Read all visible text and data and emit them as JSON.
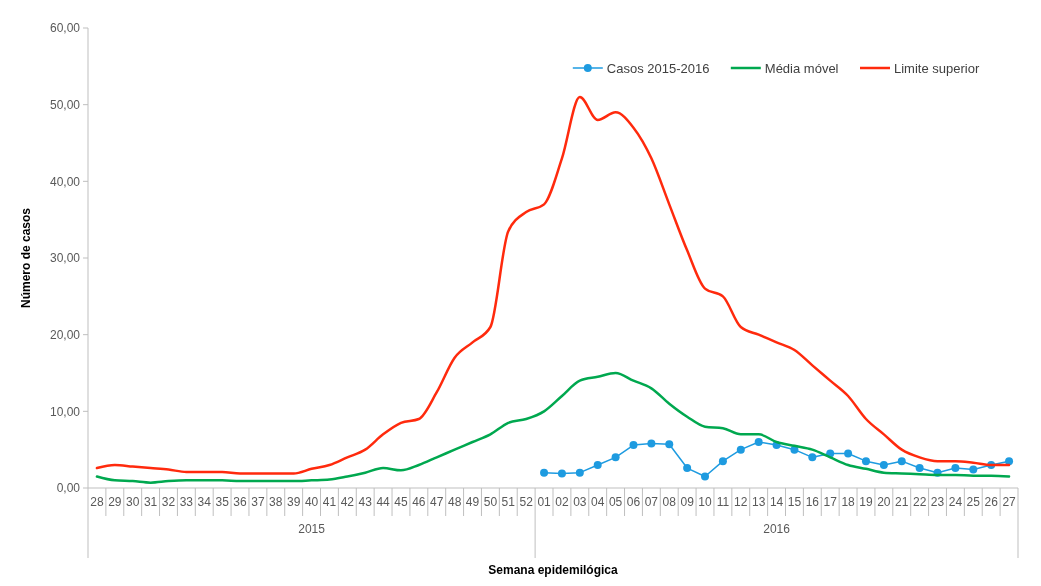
{
  "chart_data": {
    "type": "line",
    "ylabel": "Número de casos",
    "xlabel": "Semana epidemilógica",
    "categories": [
      "28",
      "29",
      "30",
      "31",
      "32",
      "33",
      "34",
      "35",
      "36",
      "37",
      "38",
      "39",
      "40",
      "41",
      "42",
      "43",
      "44",
      "45",
      "46",
      "47",
      "48",
      "49",
      "50",
      "51",
      "52",
      "01",
      "02",
      "03",
      "04",
      "05",
      "06",
      "07",
      "08",
      "09",
      "10",
      "11",
      "12",
      "13",
      "14",
      "15",
      "16",
      "17",
      "18",
      "19",
      "20",
      "21",
      "22",
      "23",
      "24",
      "25",
      "26",
      "27"
    ],
    "series": [
      {
        "name": "Casos 2015-2016",
        "color": "#1e9be0",
        "marker": "circle",
        "values": [
          null,
          null,
          null,
          null,
          null,
          null,
          null,
          null,
          null,
          null,
          null,
          null,
          null,
          null,
          null,
          null,
          null,
          null,
          null,
          null,
          null,
          null,
          null,
          null,
          null,
          2.0,
          1.9,
          2.0,
          3.0,
          4.0,
          5.6,
          5.8,
          5.7,
          2.6,
          1.5,
          3.5,
          5.0,
          6.0,
          5.6,
          5.0,
          4.0,
          4.5,
          4.5,
          3.5,
          3.0,
          3.5,
          2.6,
          2.0,
          2.6,
          2.4,
          3.0,
          3.5
        ]
      },
      {
        "name": "Média móvel",
        "color": "#00a84f",
        "marker": "none",
        "values": [
          1.5,
          1.0,
          0.9,
          0.7,
          0.9,
          1.0,
          1.0,
          1.0,
          0.9,
          0.9,
          0.9,
          0.9,
          1.0,
          1.1,
          1.5,
          2.0,
          2.6,
          2.3,
          3.0,
          4.0,
          5.0,
          6.0,
          7.0,
          8.5,
          9.0,
          10.0,
          12.0,
          14.0,
          14.5,
          15.0,
          14.0,
          13.0,
          11.0,
          9.3,
          8.0,
          7.8,
          7.0,
          7.0,
          6.0,
          5.5,
          5.0,
          4.0,
          3.0,
          2.5,
          2.0,
          1.9,
          1.8,
          1.7,
          1.7,
          1.6,
          1.6,
          1.5
        ]
      },
      {
        "name": "Limite superior",
        "color": "#ff2a0d",
        "marker": "none",
        "values": [
          2.6,
          3.0,
          2.8,
          2.6,
          2.4,
          2.1,
          2.1,
          2.1,
          1.9,
          1.9,
          1.9,
          1.9,
          2.5,
          3.0,
          4.0,
          5.0,
          7.0,
          8.5,
          9.0,
          12.5,
          17.0,
          19.0,
          21.0,
          33.5,
          36.0,
          37.0,
          43.0,
          51.0,
          48.0,
          49.0,
          47.0,
          43.0,
          37.0,
          31.0,
          26.0,
          25.0,
          21.0,
          20.0,
          19.0,
          18.0,
          16.0,
          14.0,
          12.0,
          9.0,
          7.0,
          5.0,
          4.0,
          3.5,
          3.5,
          3.3,
          3.0,
          3.0
        ]
      }
    ],
    "ylim": [
      0,
      60
    ],
    "yticks": [
      {
        "value": 0,
        "label": "0,00"
      },
      {
        "value": 10,
        "label": "10,00"
      },
      {
        "value": 20,
        "label": "20,00"
      },
      {
        "value": 30,
        "label": "30,00"
      },
      {
        "value": 40,
        "label": "40,00"
      },
      {
        "value": 50,
        "label": "50,00"
      },
      {
        "value": 60,
        "label": "60,00"
      }
    ],
    "annotations": [
      "2015",
      "2016"
    ],
    "grid": false,
    "legend": "top right"
  }
}
